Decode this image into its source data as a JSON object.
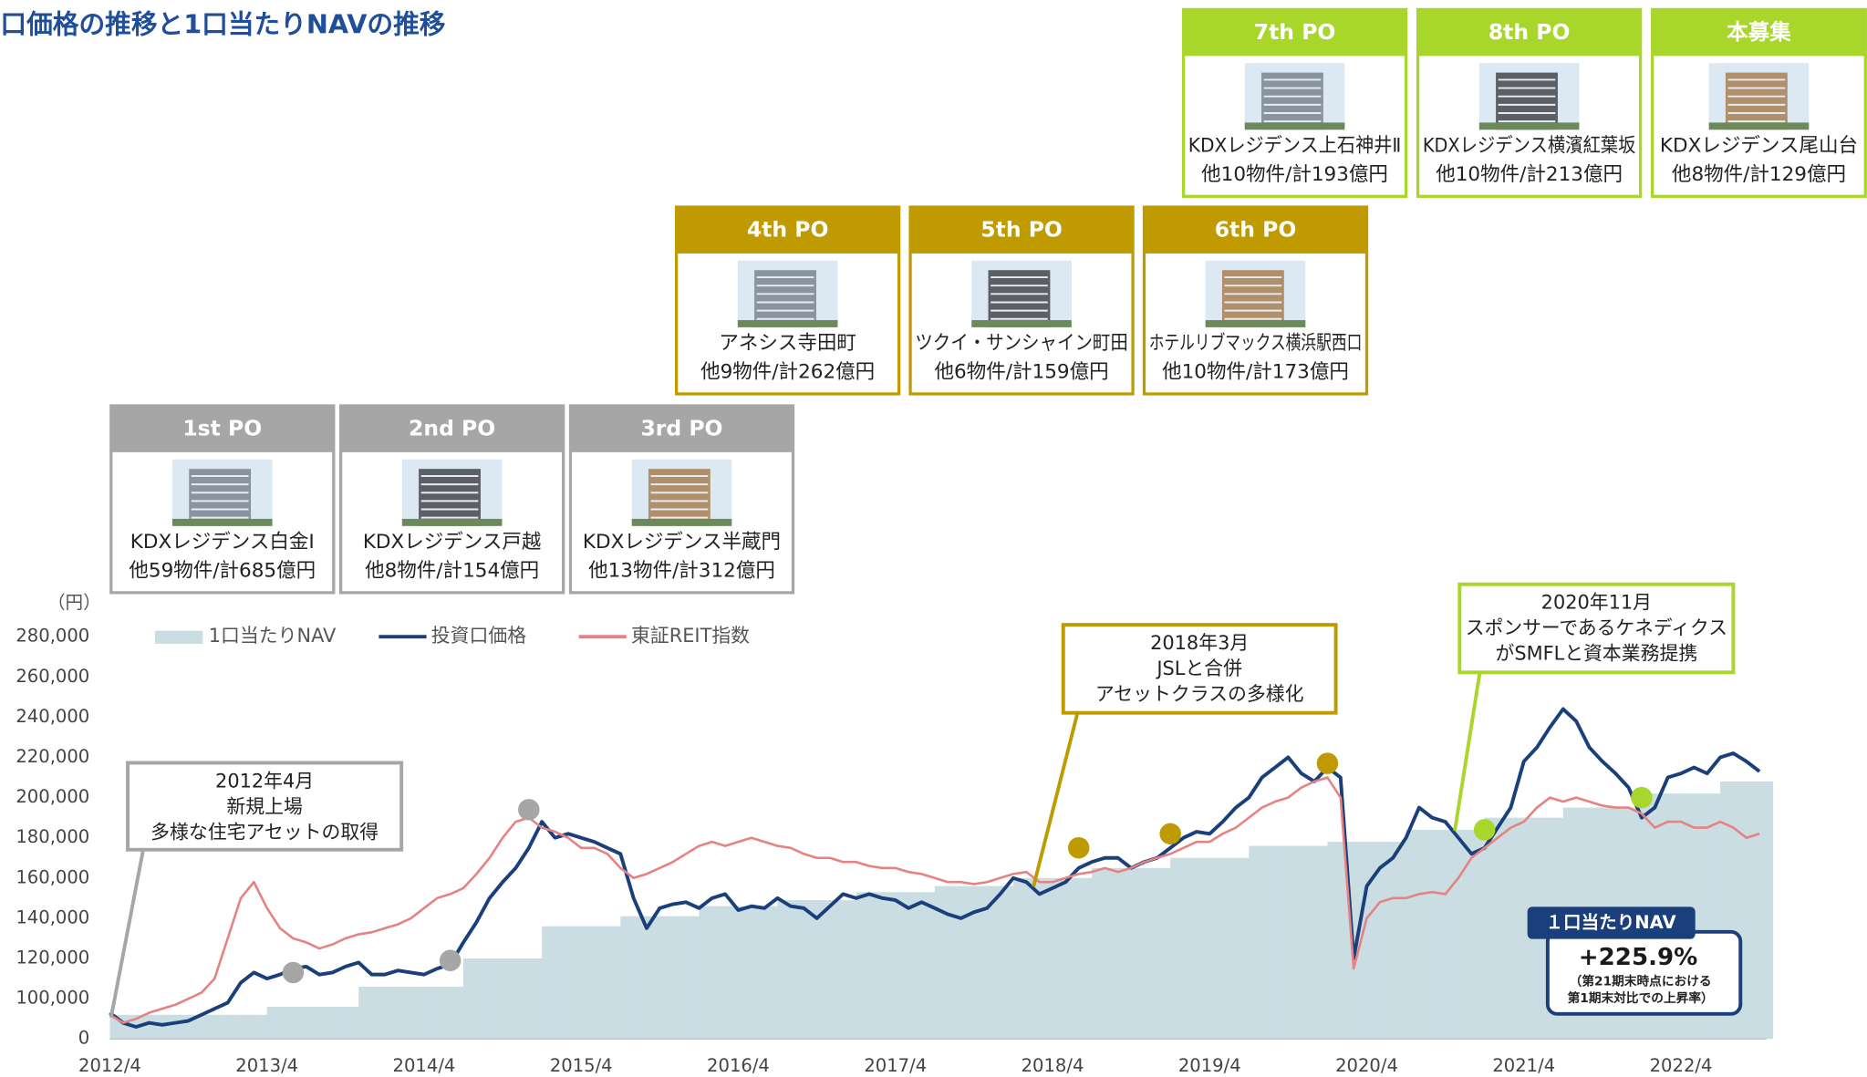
{
  "chart_data": {
    "type": "line",
    "title": "口価格の推移と1口当たりNAVの推移",
    "y_unit": "（円）",
    "categories": [
      "2012/4",
      null,
      null,
      null,
      null,
      null,
      null,
      null,
      null,
      null,
      null,
      null,
      "2013/4",
      null,
      null,
      null,
      null,
      null,
      null,
      null,
      null,
      null,
      null,
      null,
      "2014/4",
      null,
      null,
      null,
      null,
      null,
      null,
      null,
      null,
      null,
      null,
      null,
      "2015/4",
      null,
      null,
      null,
      null,
      null,
      null,
      null,
      null,
      null,
      null,
      null,
      "2016/4",
      null,
      null,
      null,
      null,
      null,
      null,
      null,
      null,
      null,
      null,
      null,
      "2017/4",
      null,
      null,
      null,
      null,
      null,
      null,
      null,
      null,
      null,
      null,
      null,
      "2018/4",
      null,
      null,
      null,
      null,
      null,
      null,
      null,
      null,
      null,
      null,
      null,
      "2019/4",
      null,
      null,
      null,
      null,
      null,
      null,
      null,
      null,
      null,
      null,
      null,
      "2020/4",
      null,
      null,
      null,
      null,
      null,
      null,
      null,
      null,
      null,
      null,
      null,
      "2021/4",
      null,
      null,
      null,
      null,
      null,
      null,
      null,
      null,
      null,
      null,
      null,
      "2022/4",
      null,
      null,
      null,
      null,
      null,
      null
    ],
    "ylim": [
      0,
      280000
    ],
    "y_axis_break": [
      0,
      80000
    ],
    "yticks": [
      0,
      {
        "value": 100000,
        "label": "100,000"
      },
      {
        "value": 120000,
        "label": "120,000"
      },
      {
        "value": 140000,
        "label": "140,000"
      },
      {
        "value": 160000,
        "label": "160,000"
      },
      {
        "value": 180000,
        "label": "180,000"
      },
      {
        "value": 200000,
        "label": "200,000"
      },
      {
        "value": 220000,
        "label": "220,000"
      },
      {
        "value": 240000,
        "label": "240,000"
      },
      {
        "value": 260000,
        "label": "260,000"
      },
      {
        "value": 280000,
        "label": "280,000"
      }
    ],
    "series": [
      {
        "name": "1口当たりNAV",
        "type": "area",
        "color": "#c9dde3",
        "values": [
          92000,
          92000,
          92000,
          92000,
          92000,
          92000,
          92000,
          92000,
          92000,
          92000,
          92000,
          92000,
          96000,
          96000,
          96000,
          96000,
          96000,
          96000,
          96000,
          106000,
          106000,
          106000,
          106000,
          106000,
          106000,
          106000,
          106000,
          120000,
          120000,
          120000,
          120000,
          120000,
          120000,
          136000,
          136000,
          136000,
          136000,
          136000,
          136000,
          141000,
          141000,
          141000,
          141000,
          141000,
          141000,
          146000,
          146000,
          146000,
          146000,
          146000,
          146000,
          149000,
          149000,
          149000,
          149000,
          149000,
          149000,
          153000,
          153000,
          153000,
          153000,
          153000,
          153000,
          156000,
          156000,
          156000,
          156000,
          156000,
          156000,
          160000,
          160000,
          160000,
          160000,
          160000,
          160000,
          165000,
          165000,
          165000,
          165000,
          165000,
          165000,
          170000,
          170000,
          170000,
          170000,
          170000,
          170000,
          176000,
          176000,
          176000,
          176000,
          176000,
          176000,
          178000,
          178000,
          178000,
          178000,
          178000,
          178000,
          184000,
          184000,
          184000,
          184000,
          184000,
          184000,
          190000,
          190000,
          190000,
          190000,
          190000,
          190000,
          195000,
          195000,
          195000,
          195000,
          195000,
          195000,
          202000,
          202000,
          202000,
          202000,
          202000,
          202000,
          208000,
          208000,
          208000,
          208000
        ]
      },
      {
        "name": "投資口価格",
        "type": "line",
        "color": "#1a3f7a",
        "values": [
          93000,
          88000,
          86000,
          88000,
          87000,
          88000,
          89000,
          92000,
          95000,
          98000,
          108000,
          113000,
          110000,
          112000,
          115000,
          116000,
          112000,
          113000,
          116000,
          118000,
          112000,
          112000,
          114000,
          113000,
          112000,
          115000,
          117000,
          128000,
          138000,
          150000,
          158000,
          165000,
          175000,
          188000,
          180000,
          182000,
          180000,
          178000,
          175000,
          172000,
          150000,
          135000,
          145000,
          147000,
          148000,
          145000,
          150000,
          152000,
          144000,
          146000,
          145000,
          150000,
          146000,
          145000,
          140000,
          146000,
          152000,
          150000,
          152000,
          150000,
          149000,
          145000,
          148000,
          145000,
          142000,
          140000,
          143000,
          145000,
          152000,
          160000,
          158000,
          152000,
          155000,
          158000,
          165000,
          168000,
          170000,
          170000,
          165000,
          168000,
          170000,
          175000,
          180000,
          183000,
          182000,
          188000,
          195000,
          200000,
          210000,
          215000,
          220000,
          212000,
          208000,
          215000,
          210000,
          120000,
          156000,
          165000,
          170000,
          180000,
          195000,
          190000,
          188000,
          180000,
          172000,
          175000,
          185000,
          195000,
          218000,
          225000,
          235000,
          244000,
          238000,
          225000,
          218000,
          212000,
          205000,
          190000,
          195000,
          210000,
          212000,
          215000,
          212000,
          220000,
          222000,
          218000,
          213000
        ]
      },
      {
        "name": "東証REIT指数",
        "type": "line",
        "color": "#e58383",
        "values": [
          92000,
          88000,
          90000,
          93000,
          95000,
          97000,
          100000,
          103000,
          110000,
          130000,
          150000,
          158000,
          145000,
          135000,
          130000,
          128000,
          125000,
          127000,
          130000,
          132000,
          133000,
          135000,
          137000,
          140000,
          145000,
          150000,
          152000,
          155000,
          162000,
          170000,
          180000,
          188000,
          190000,
          185000,
          183000,
          180000,
          175000,
          175000,
          172000,
          165000,
          160000,
          162000,
          165000,
          168000,
          172000,
          176000,
          178000,
          176000,
          178000,
          180000,
          178000,
          176000,
          175000,
          172000,
          170000,
          170000,
          168000,
          168000,
          166000,
          165000,
          165000,
          163000,
          162000,
          160000,
          158000,
          158000,
          157000,
          158000,
          160000,
          162000,
          163000,
          158000,
          158000,
          160000,
          162000,
          163000,
          165000,
          163000,
          165000,
          168000,
          170000,
          172000,
          175000,
          178000,
          178000,
          182000,
          185000,
          190000,
          195000,
          198000,
          200000,
          205000,
          208000,
          210000,
          200000,
          115000,
          140000,
          148000,
          150000,
          150000,
          152000,
          153000,
          152000,
          160000,
          170000,
          175000,
          180000,
          185000,
          188000,
          195000,
          200000,
          198000,
          200000,
          198000,
          196000,
          195000,
          195000,
          192000,
          185000,
          188000,
          188000,
          185000,
          185000,
          188000,
          185000,
          180000,
          182000
        ]
      }
    ],
    "po_markers": [
      {
        "x": "2013/6",
        "value": 113000,
        "color": "#a6a6a6"
      },
      {
        "x": "2014/6",
        "value": 119000,
        "color": "#a6a6a6"
      },
      {
        "x": "2014/12",
        "value": 194000,
        "color": "#a6a6a6"
      },
      {
        "x": "2018/6",
        "value": 175000,
        "color": "#bf9a00"
      },
      {
        "x": "2019/1",
        "value": 182000,
        "color": "#bf9a00"
      },
      {
        "x": "2020/1",
        "value": 217000,
        "color": "#bf9a00"
      },
      {
        "x": "2021/1",
        "value": 184000,
        "color": "#a8d62a"
      },
      {
        "x": "2022/1",
        "value": 200000,
        "color": "#a8d62a"
      }
    ],
    "annotations": [
      {
        "color": "#a6a6a6",
        "lines": [
          "2012年4月",
          "新規上場",
          "多様な住宅アセットの取得"
        ]
      },
      {
        "color": "#bf9a00",
        "lines": [
          "2018年3月",
          "JSLと合併",
          "アセットクラスの多様化"
        ]
      },
      {
        "color": "#a8d62a",
        "lines": [
          "2020年11月",
          "スポンサーであるケネディクス",
          "がSMFLと資本業務提携"
        ]
      }
    ],
    "nav_callout": {
      "tag": "１口当たりNAV",
      "change": "+225.9%",
      "note": [
        "（第21期末時点における",
        "第1期末対比での上昇率）"
      ]
    }
  },
  "po_cards": [
    {
      "title": "1st PO",
      "color": "#a6a6a6",
      "lines": [
        "KDXレジデンス白金Ⅰ",
        "他59物件/計685億円"
      ]
    },
    {
      "title": "2nd PO",
      "color": "#a6a6a6",
      "lines": [
        "KDXレジデンス戸越",
        "他8物件/計154億円"
      ]
    },
    {
      "title": "3rd PO",
      "color": "#a6a6a6",
      "lines": [
        "KDXレジデンス半蔵門",
        "他13物件/計312億円"
      ]
    },
    {
      "title": "4th PO",
      "color": "#bf9a00",
      "lines": [
        "アネシス寺田町",
        "他9物件/計262億円"
      ]
    },
    {
      "title": "5th PO",
      "color": "#bf9a00",
      "lines": [
        "ツクイ・サンシャイン町田",
        "他6物件/計159億円"
      ]
    },
    {
      "title": "6th PO",
      "color": "#bf9a00",
      "lines": [
        "ホテルリブマックス横浜駅西口",
        "他10物件/計173億円"
      ]
    },
    {
      "title": "7th PO",
      "color": "#a8d62a",
      "lines": [
        "KDXレジデンス上石神井Ⅱ",
        "他10物件/計193億円"
      ]
    },
    {
      "title": "8th PO",
      "color": "#a8d62a",
      "lines": [
        "KDXレジデンス横濱紅葉坂",
        "他10物件/計213億円"
      ]
    },
    {
      "title": "本募集",
      "color": "#a8d62a",
      "lines": [
        "KDXレジデンス尾山台",
        "他8物件/計129億円"
      ]
    }
  ]
}
